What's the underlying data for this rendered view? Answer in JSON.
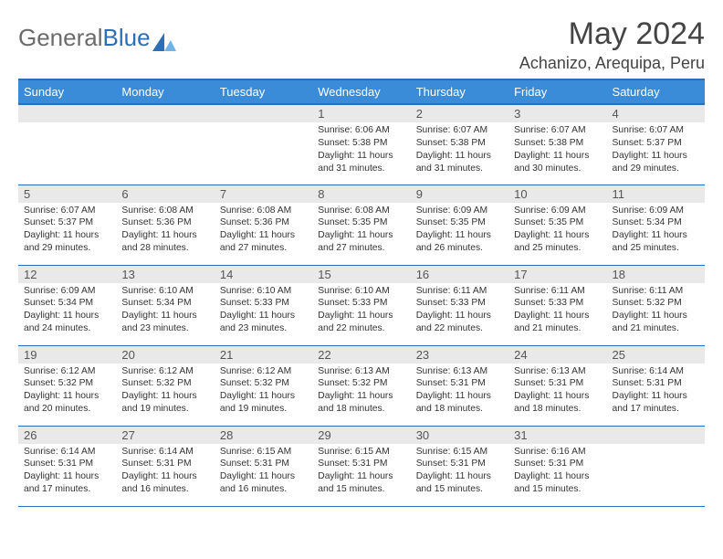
{
  "brand": {
    "part1": "General",
    "part2": "Blue"
  },
  "title": "May 2024",
  "location": "Achanizo, Arequipa, Peru",
  "colors": {
    "header_bg": "#3a8bd8",
    "rule": "#2c6fb8",
    "daynum_bg": "#e9e9e9",
    "text": "#333333",
    "title_text": "#444444"
  },
  "weekdays": [
    "Sunday",
    "Monday",
    "Tuesday",
    "Wednesday",
    "Thursday",
    "Friday",
    "Saturday"
  ],
  "weeks": [
    [
      {
        "n": "",
        "sr": "",
        "ss": "",
        "dl": ""
      },
      {
        "n": "",
        "sr": "",
        "ss": "",
        "dl": ""
      },
      {
        "n": "",
        "sr": "",
        "ss": "",
        "dl": ""
      },
      {
        "n": "1",
        "sr": "6:06 AM",
        "ss": "5:38 PM",
        "dl": "11 hours and 31 minutes."
      },
      {
        "n": "2",
        "sr": "6:07 AM",
        "ss": "5:38 PM",
        "dl": "11 hours and 31 minutes."
      },
      {
        "n": "3",
        "sr": "6:07 AM",
        "ss": "5:38 PM",
        "dl": "11 hours and 30 minutes."
      },
      {
        "n": "4",
        "sr": "6:07 AM",
        "ss": "5:37 PM",
        "dl": "11 hours and 29 minutes."
      }
    ],
    [
      {
        "n": "5",
        "sr": "6:07 AM",
        "ss": "5:37 PM",
        "dl": "11 hours and 29 minutes."
      },
      {
        "n": "6",
        "sr": "6:08 AM",
        "ss": "5:36 PM",
        "dl": "11 hours and 28 minutes."
      },
      {
        "n": "7",
        "sr": "6:08 AM",
        "ss": "5:36 PM",
        "dl": "11 hours and 27 minutes."
      },
      {
        "n": "8",
        "sr": "6:08 AM",
        "ss": "5:35 PM",
        "dl": "11 hours and 27 minutes."
      },
      {
        "n": "9",
        "sr": "6:09 AM",
        "ss": "5:35 PM",
        "dl": "11 hours and 26 minutes."
      },
      {
        "n": "10",
        "sr": "6:09 AM",
        "ss": "5:35 PM",
        "dl": "11 hours and 25 minutes."
      },
      {
        "n": "11",
        "sr": "6:09 AM",
        "ss": "5:34 PM",
        "dl": "11 hours and 25 minutes."
      }
    ],
    [
      {
        "n": "12",
        "sr": "6:09 AM",
        "ss": "5:34 PM",
        "dl": "11 hours and 24 minutes."
      },
      {
        "n": "13",
        "sr": "6:10 AM",
        "ss": "5:34 PM",
        "dl": "11 hours and 23 minutes."
      },
      {
        "n": "14",
        "sr": "6:10 AM",
        "ss": "5:33 PM",
        "dl": "11 hours and 23 minutes."
      },
      {
        "n": "15",
        "sr": "6:10 AM",
        "ss": "5:33 PM",
        "dl": "11 hours and 22 minutes."
      },
      {
        "n": "16",
        "sr": "6:11 AM",
        "ss": "5:33 PM",
        "dl": "11 hours and 22 minutes."
      },
      {
        "n": "17",
        "sr": "6:11 AM",
        "ss": "5:33 PM",
        "dl": "11 hours and 21 minutes."
      },
      {
        "n": "18",
        "sr": "6:11 AM",
        "ss": "5:32 PM",
        "dl": "11 hours and 21 minutes."
      }
    ],
    [
      {
        "n": "19",
        "sr": "6:12 AM",
        "ss": "5:32 PM",
        "dl": "11 hours and 20 minutes."
      },
      {
        "n": "20",
        "sr": "6:12 AM",
        "ss": "5:32 PM",
        "dl": "11 hours and 19 minutes."
      },
      {
        "n": "21",
        "sr": "6:12 AM",
        "ss": "5:32 PM",
        "dl": "11 hours and 19 minutes."
      },
      {
        "n": "22",
        "sr": "6:13 AM",
        "ss": "5:32 PM",
        "dl": "11 hours and 18 minutes."
      },
      {
        "n": "23",
        "sr": "6:13 AM",
        "ss": "5:31 PM",
        "dl": "11 hours and 18 minutes."
      },
      {
        "n": "24",
        "sr": "6:13 AM",
        "ss": "5:31 PM",
        "dl": "11 hours and 18 minutes."
      },
      {
        "n": "25",
        "sr": "6:14 AM",
        "ss": "5:31 PM",
        "dl": "11 hours and 17 minutes."
      }
    ],
    [
      {
        "n": "26",
        "sr": "6:14 AM",
        "ss": "5:31 PM",
        "dl": "11 hours and 17 minutes."
      },
      {
        "n": "27",
        "sr": "6:14 AM",
        "ss": "5:31 PM",
        "dl": "11 hours and 16 minutes."
      },
      {
        "n": "28",
        "sr": "6:15 AM",
        "ss": "5:31 PM",
        "dl": "11 hours and 16 minutes."
      },
      {
        "n": "29",
        "sr": "6:15 AM",
        "ss": "5:31 PM",
        "dl": "11 hours and 15 minutes."
      },
      {
        "n": "30",
        "sr": "6:15 AM",
        "ss": "5:31 PM",
        "dl": "11 hours and 15 minutes."
      },
      {
        "n": "31",
        "sr": "6:16 AM",
        "ss": "5:31 PM",
        "dl": "11 hours and 15 minutes."
      },
      {
        "n": "",
        "sr": "",
        "ss": "",
        "dl": ""
      }
    ]
  ],
  "labels": {
    "sunrise": "Sunrise:",
    "sunset": "Sunset:",
    "daylight": "Daylight:"
  }
}
